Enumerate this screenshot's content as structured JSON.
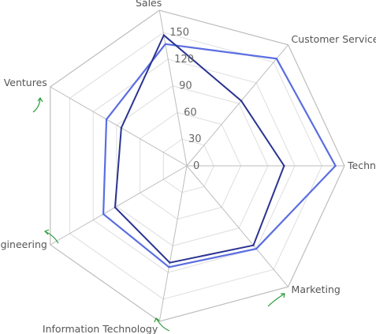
{
  "chart_data": {
    "type": "radar",
    "categories": [
      "Sales",
      "Customer Service",
      "Technical",
      "Marketing",
      "Information Technology",
      "Engineering",
      "Ventures"
    ],
    "radial_ticks": [
      0,
      30,
      60,
      90,
      120,
      150
    ],
    "rmax": 175,
    "grid": true,
    "series": [
      {
        "color": "#5b6ee1",
        "values": [
          137,
          155,
          165,
          120,
          114,
          107,
          103
        ]
      },
      {
        "color": "#2b3391",
        "values": [
          147,
          94,
          108,
          115,
          109,
          92,
          84
        ]
      }
    ]
  }
}
